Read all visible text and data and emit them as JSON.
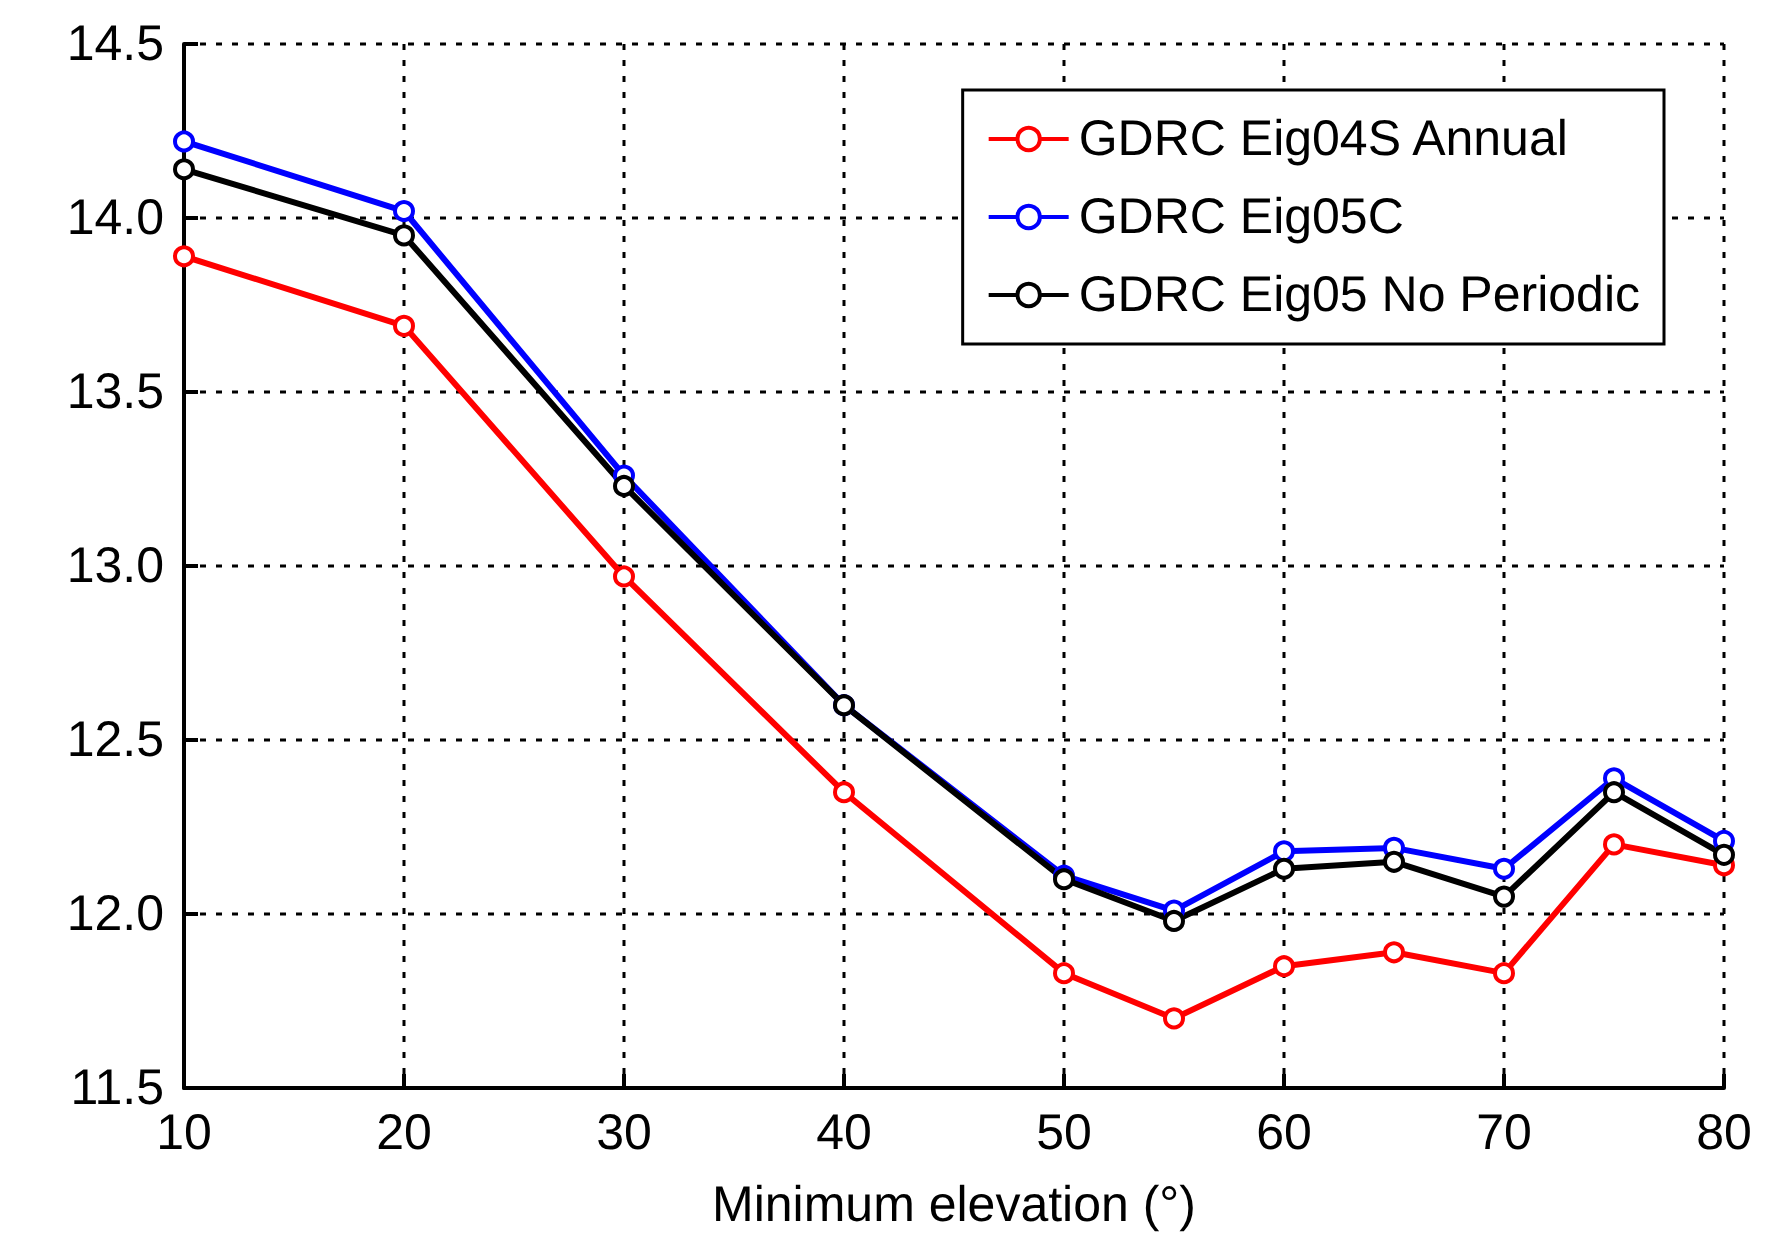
{
  "chart_data": {
    "type": "line",
    "xlabel": "Minimum elevation (°)",
    "x": [
      10,
      20,
      30,
      40,
      50,
      55,
      60,
      65,
      70,
      75,
      80
    ],
    "series": [
      {
        "name": "GDRC Eig04S Annual",
        "color": "#ff0000",
        "values": [
          13.89,
          13.69,
          12.97,
          12.35,
          11.83,
          11.7,
          11.85,
          11.89,
          11.83,
          12.2,
          12.14
        ]
      },
      {
        "name": "GDRC Eig05C",
        "color": "#0000ff",
        "values": [
          14.22,
          14.02,
          13.26,
          12.6,
          12.11,
          12.01,
          12.18,
          12.19,
          12.13,
          12.39,
          12.21
        ]
      },
      {
        "name": "GDRC Eig05 No Periodic",
        "color": "#000000",
        "values": [
          14.14,
          13.95,
          13.23,
          12.6,
          12.1,
          11.98,
          12.13,
          12.15,
          12.05,
          12.35,
          12.17
        ]
      }
    ],
    "xlim": [
      10,
      80
    ],
    "xticks": [
      10,
      20,
      30,
      40,
      50,
      60,
      70,
      80
    ],
    "ylim": [
      11.5,
      14.5
    ],
    "yticks": [
      11.5,
      {
        "value": 12,
        "label": "12.0"
      },
      12.5,
      {
        "value": 13,
        "label": "13.0"
      },
      13.5,
      {
        "value": 14,
        "label": "14.0"
      },
      14.5
    ],
    "grid": true,
    "legend": "top right",
    "marker": "circle",
    "line_style": "solid"
  }
}
